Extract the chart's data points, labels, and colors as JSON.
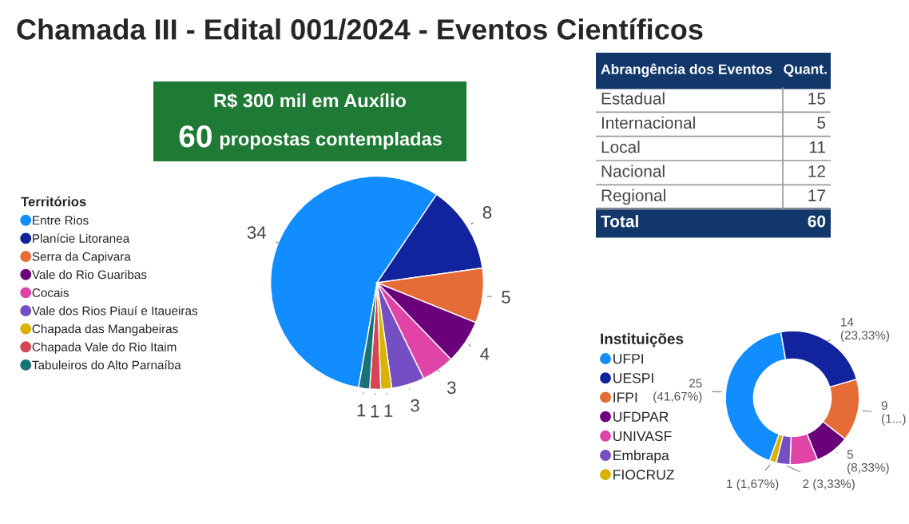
{
  "chart_data": [
    {
      "type": "other",
      "title": "Chamada III - Edital 001/2024 - Eventos Científicos",
      "annotations": [
        "R$ 300 mil em Auxílio",
        "60",
        "propostas contempladas"
      ],
      "color": "#1e7a34"
    },
    {
      "type": "other",
      "xlabel": "Abrangência dos Eventos",
      "ylabel": "Quant.",
      "categories": [
        "Estadual",
        "Internacional",
        "Local",
        "Nacional",
        "Regional"
      ],
      "values": [
        15,
        5,
        11,
        12,
        17
      ],
      "annotations": [
        "Total",
        "60"
      ],
      "color": "#12386b",
      "data_labels": true
    },
    {
      "type": "pie",
      "legend_title": "Territórios",
      "legend": "left",
      "data_labels": true,
      "categories": [
        "Entre Rios",
        "Planície Litoranea",
        "Serra da Capivara",
        "Vale do Rio Guaribas",
        "Cocais",
        "Vale dos Rios Piauí e Itaueiras",
        "Chapada das Mangabeiras",
        "Chapada Vale do Rio Itaim",
        "Tabuleiros do Alto Parnaíba"
      ],
      "values": [
        34,
        8,
        5,
        4,
        3,
        3,
        1,
        1,
        1
      ],
      "colors": [
        "#118dff",
        "#12239e",
        "#e66c37",
        "#6b007b",
        "#e044a7",
        "#744ec2",
        "#d9b300",
        "#d64550",
        "#197278"
      ]
    },
    {
      "type": "donut",
      "legend_title": "Instituições",
      "legend": "left",
      "categories": [
        "UFPI",
        "UESPI",
        "IFPI",
        "UFDPAR",
        "UNIVASF",
        "Embrapa",
        "FIOCRUZ"
      ],
      "values": [
        25,
        14,
        9,
        5,
        4,
        2,
        1
      ],
      "value_labels": [
        "25 (41,67%)",
        "14 (23,33%)",
        "9 (1...)",
        "5 (8,33%)",
        null,
        "2 (3,33%)",
        "1 (1,67%)"
      ],
      "colors": [
        "#118dff",
        "#12239e",
        "#e66c37",
        "#6b007b",
        "#e044a7",
        "#744ec2",
        "#d9b300"
      ]
    }
  ]
}
